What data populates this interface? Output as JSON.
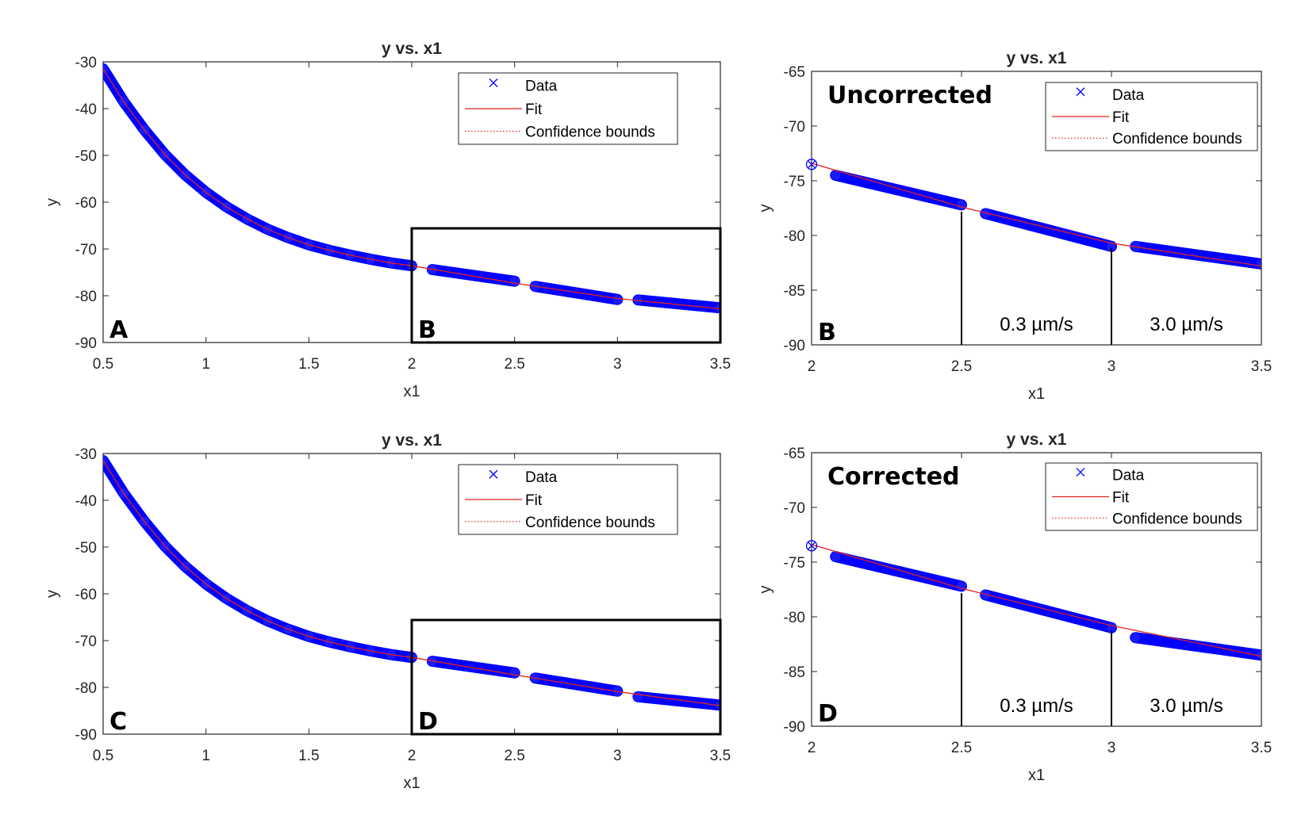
{
  "colors": {
    "data": "#0000ff",
    "fit": "#e02020",
    "axis": "#262626"
  },
  "legend": {
    "data": "Data",
    "fit": "Fit",
    "bounds": "Confidence bounds"
  },
  "chart_data": [
    {
      "type": "scatter",
      "panel": "A",
      "title": "y vs. x1",
      "xlabel": "x1",
      "ylabel": "y",
      "xlim": [
        0.5,
        3.5
      ],
      "ylim": [
        -90,
        -30
      ],
      "xticks": [
        "0.5",
        "1",
        "1.5",
        "2",
        "2.5",
        "3",
        "3.5"
      ],
      "yticks": [
        "-30",
        "-40",
        "-50",
        "-60",
        "-70",
        "-80",
        "-90"
      ],
      "inset_letter": "B",
      "series": [
        {
          "name": "Data",
          "segments": [
            {
              "x": [
                0.5,
                0.6,
                0.7,
                0.8,
                0.9,
                1.0,
                1.1,
                1.2,
                1.3,
                1.4,
                1.5,
                1.6,
                1.7,
                1.8,
                1.9,
                2.0
              ],
              "y": [
                -31.5,
                -38.5,
                -44.5,
                -49.8,
                -54.2,
                -57.9,
                -61.0,
                -63.6,
                -65.8,
                -67.6,
                -69.1,
                -70.3,
                -71.3,
                -72.2,
                -73.0,
                -73.6
              ]
            },
            {
              "x": [
                2.1,
                2.5
              ],
              "y": [
                -74.4,
                -76.9
              ]
            },
            {
              "x": [
                2.6,
                3.0
              ],
              "y": [
                -78.0,
                -80.8
              ]
            },
            {
              "x": [
                3.1,
                3.5
              ],
              "y": [
                -80.9,
                -82.6
              ]
            }
          ]
        },
        {
          "name": "Fit",
          "x": [
            0.5,
            0.6,
            0.7,
            0.8,
            0.9,
            1.0,
            1.1,
            1.2,
            1.3,
            1.4,
            1.5,
            1.6,
            1.7,
            1.8,
            1.9,
            2.0,
            2.5,
            3.0,
            3.5
          ],
          "y": [
            -31.5,
            -38.5,
            -44.5,
            -49.8,
            -54.2,
            -57.9,
            -61.0,
            -63.6,
            -65.8,
            -67.6,
            -69.1,
            -70.3,
            -71.3,
            -72.2,
            -73.0,
            -73.6,
            -77.3,
            -80.6,
            -82.8
          ]
        }
      ]
    },
    {
      "type": "scatter",
      "panel": "B",
      "title": "y vs. x1",
      "xlabel": "x1",
      "ylabel": "y",
      "xlim": [
        2,
        3.5
      ],
      "ylim": [
        -90,
        -65
      ],
      "xticks": [
        "2",
        "2.5",
        "3",
        "3.5"
      ],
      "yticks": [
        "-65",
        "-70",
        "-75",
        "-80",
        "-85",
        "-90"
      ],
      "label": "Uncorrected",
      "speeds": [
        "0.3 µm/s",
        "3.0 µm/s"
      ],
      "series": [
        {
          "name": "Data",
          "start_point": [
            2.0,
            -73.5
          ],
          "segments": [
            {
              "x": [
                2.08,
                2.5
              ],
              "y": [
                -74.5,
                -77.2
              ]
            },
            {
              "x": [
                2.58,
                3.0
              ],
              "y": [
                -78.0,
                -81.0
              ]
            },
            {
              "x": [
                3.08,
                3.5
              ],
              "y": [
                -81.0,
                -82.6
              ]
            }
          ]
        },
        {
          "name": "Fit",
          "x": [
            2.0,
            2.5,
            3.0,
            3.5
          ],
          "y": [
            -73.4,
            -77.4,
            -80.7,
            -82.8
          ]
        }
      ]
    },
    {
      "type": "scatter",
      "panel": "C",
      "title": "y vs. x1",
      "xlabel": "x1",
      "ylabel": "y",
      "xlim": [
        0.5,
        3.5
      ],
      "ylim": [
        -90,
        -30
      ],
      "xticks": [
        "0.5",
        "1",
        "1.5",
        "2",
        "2.5",
        "3",
        "3.5"
      ],
      "yticks": [
        "-30",
        "-40",
        "-50",
        "-60",
        "-70",
        "-80",
        "-90"
      ],
      "inset_letter": "D",
      "series": [
        {
          "name": "Data",
          "segments": [
            {
              "x": [
                0.5,
                0.6,
                0.7,
                0.8,
                0.9,
                1.0,
                1.1,
                1.2,
                1.3,
                1.4,
                1.5,
                1.6,
                1.7,
                1.8,
                1.9,
                2.0
              ],
              "y": [
                -31.5,
                -38.5,
                -44.5,
                -49.8,
                -54.2,
                -57.9,
                -61.0,
                -63.6,
                -65.8,
                -67.6,
                -69.1,
                -70.3,
                -71.3,
                -72.2,
                -73.0,
                -73.6
              ]
            },
            {
              "x": [
                2.1,
                2.5
              ],
              "y": [
                -74.4,
                -76.9
              ]
            },
            {
              "x": [
                2.6,
                3.0
              ],
              "y": [
                -78.0,
                -80.8
              ]
            },
            {
              "x": [
                3.1,
                3.5
              ],
              "y": [
                -82.0,
                -83.8
              ]
            }
          ]
        },
        {
          "name": "Fit",
          "x": [
            0.5,
            0.6,
            0.7,
            0.8,
            0.9,
            1.0,
            1.1,
            1.2,
            1.3,
            1.4,
            1.5,
            1.6,
            1.7,
            1.8,
            1.9,
            2.0,
            2.5,
            3.0,
            3.5
          ],
          "y": [
            -31.5,
            -38.5,
            -44.5,
            -49.8,
            -54.2,
            -57.9,
            -61.0,
            -63.6,
            -65.8,
            -67.6,
            -69.1,
            -70.3,
            -71.3,
            -72.2,
            -73.0,
            -73.6,
            -77.3,
            -80.9,
            -83.9
          ]
        }
      ]
    },
    {
      "type": "scatter",
      "panel": "D",
      "title": "y vs. x1",
      "xlabel": "x1",
      "ylabel": "y",
      "xlim": [
        2,
        3.5
      ],
      "ylim": [
        -90,
        -65
      ],
      "xticks": [
        "2",
        "2.5",
        "3",
        "3.5"
      ],
      "yticks": [
        "-65",
        "-70",
        "-75",
        "-80",
        "-85",
        "-90"
      ],
      "label": "Corrected",
      "speeds": [
        "0.3 µm/s",
        "3.0 µm/s"
      ],
      "series": [
        {
          "name": "Data",
          "start_point": [
            2.0,
            -73.5
          ],
          "segments": [
            {
              "x": [
                2.08,
                2.5
              ],
              "y": [
                -74.5,
                -77.2
              ]
            },
            {
              "x": [
                2.58,
                3.0
              ],
              "y": [
                -78.0,
                -81.0
              ]
            },
            {
              "x": [
                3.08,
                3.5
              ],
              "y": [
                -81.9,
                -83.5
              ]
            }
          ]
        },
        {
          "name": "Fit",
          "x": [
            2.0,
            2.5,
            3.0,
            3.5
          ],
          "y": [
            -73.4,
            -77.4,
            -80.8,
            -83.6
          ]
        }
      ]
    }
  ]
}
